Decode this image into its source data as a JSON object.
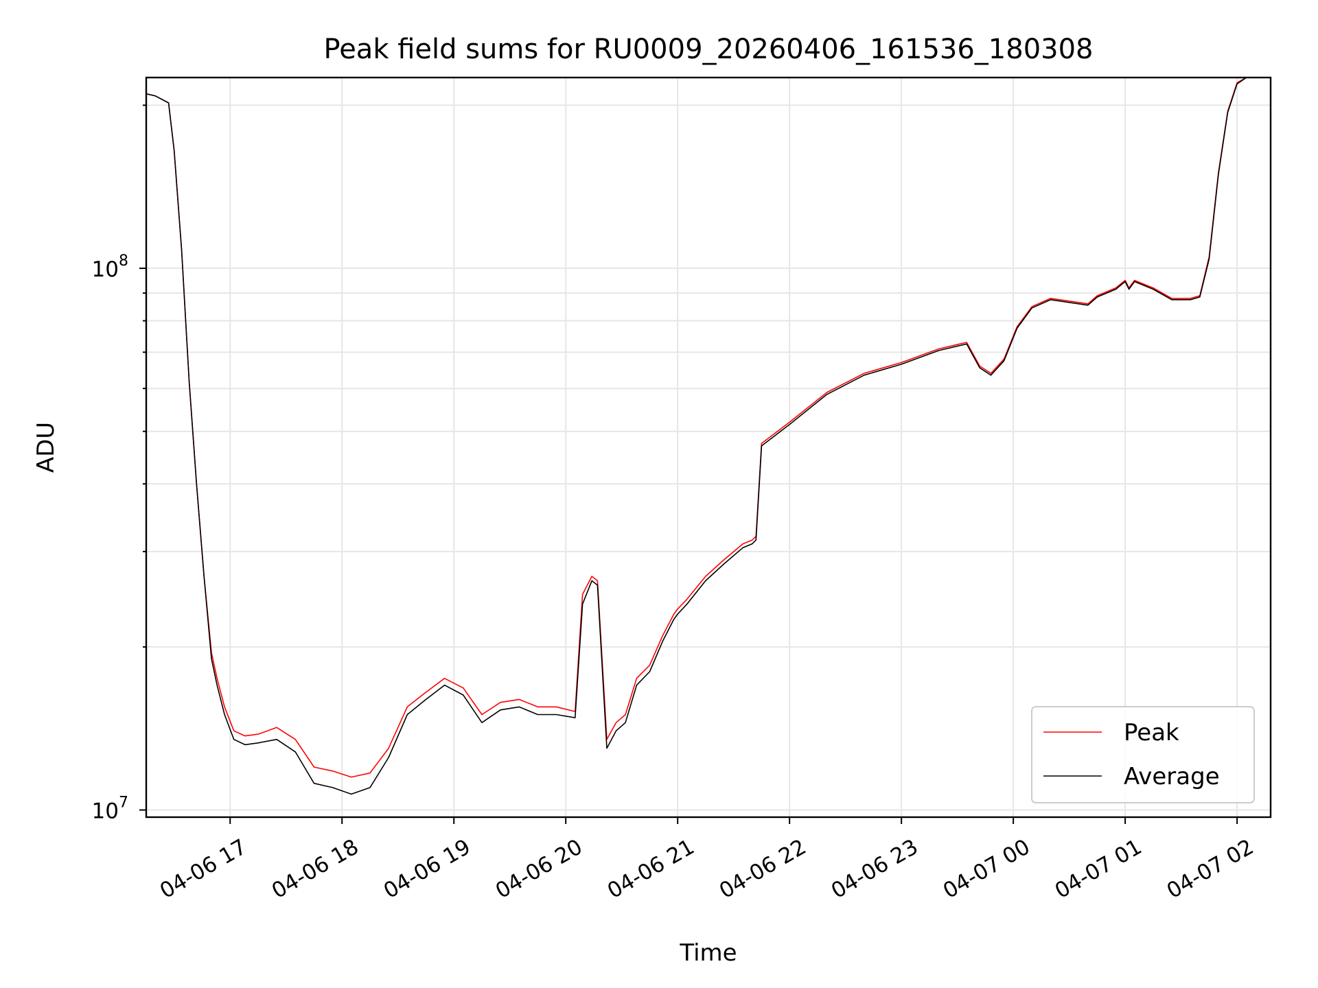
{
  "chart_data": {
    "type": "line",
    "title": "Peak field sums for RU0009_20260406_161536_180308",
    "xlabel": "Time",
    "ylabel": "ADU",
    "x_axis": {
      "type": "time",
      "range": [
        "2026-04-06 16:15",
        "2026-04-07 02:18"
      ],
      "tick_labels": [
        "04-06 17",
        "04-06 18",
        "04-06 19",
        "04-06 20",
        "04-06 21",
        "04-06 22",
        "04-06 23",
        "04-07 00",
        "04-07 01",
        "04-07 02"
      ]
    },
    "y_axis": {
      "scale": "log",
      "range": [
        9700000,
        225000000
      ],
      "major_ticks": [
        10000000,
        100000000
      ],
      "tick_labels": [
        {
          "base": "10",
          "exp": "7"
        },
        {
          "base": "10",
          "exp": "8"
        }
      ]
    },
    "grid": true,
    "legend": {
      "placement": "lower-right"
    },
    "series": [
      {
        "name": "Peak",
        "color": "#ff0000",
        "x": [
          "2026-04-06 16:15",
          "2026-04-06 16:20",
          "2026-04-06 16:27",
          "2026-04-06 16:30",
          "2026-04-06 16:34",
          "2026-04-06 16:38",
          "2026-04-06 16:42",
          "2026-04-06 16:46",
          "2026-04-06 16:50",
          "2026-04-06 16:53",
          "2026-04-06 16:57",
          "2026-04-06 17:02",
          "2026-04-06 17:08",
          "2026-04-06 17:15",
          "2026-04-06 17:25",
          "2026-04-06 17:35",
          "2026-04-06 17:45",
          "2026-04-06 17:55",
          "2026-04-06 18:05",
          "2026-04-06 18:15",
          "2026-04-06 18:25",
          "2026-04-06 18:35",
          "2026-04-06 18:45",
          "2026-04-06 18:55",
          "2026-04-06 19:05",
          "2026-04-06 19:15",
          "2026-04-06 19:25",
          "2026-04-06 19:35",
          "2026-04-06 19:45",
          "2026-04-06 19:55",
          "2026-04-06 20:05",
          "2026-04-06 20:09",
          "2026-04-06 20:14",
          "2026-04-06 20:17",
          "2026-04-06 20:22",
          "2026-04-06 20:27",
          "2026-04-06 20:32",
          "2026-04-06 20:38",
          "2026-04-06 20:45",
          "2026-04-06 20:52",
          "2026-04-06 20:58",
          "2026-04-06 21:00",
          "2026-04-06 21:05",
          "2026-04-06 21:15",
          "2026-04-06 21:25",
          "2026-04-06 21:35",
          "2026-04-06 21:40",
          "2026-04-06 21:42",
          "2026-04-06 21:45",
          "2026-04-06 22:00",
          "2026-04-06 22:20",
          "2026-04-06 22:40",
          "2026-04-06 23:00",
          "2026-04-06 23:20",
          "2026-04-06 23:35",
          "2026-04-06 23:42",
          "2026-04-06 23:48",
          "2026-04-06 23:55",
          "2026-04-07 00:02",
          "2026-04-07 00:10",
          "2026-04-07 00:20",
          "2026-04-07 00:30",
          "2026-04-07 00:40",
          "2026-04-07 00:45",
          "2026-04-07 00:55",
          "2026-04-07 01:00",
          "2026-04-07 01:02",
          "2026-04-07 01:05",
          "2026-04-07 01:15",
          "2026-04-07 01:25",
          "2026-04-07 01:35",
          "2026-04-07 01:40",
          "2026-04-07 01:45",
          "2026-04-07 01:50",
          "2026-04-07 01:55",
          "2026-04-07 02:00",
          "2026-04-07 02:05",
          "2026-04-07 02:10"
        ],
        "y": [
          210000000,
          208000000,
          202000000,
          165000000,
          108000000,
          62000000,
          40000000,
          27000000,
          19500000,
          17500000,
          15500000,
          14000000,
          13700000,
          13800000,
          14200000,
          13500000,
          12000000,
          11800000,
          11500000,
          11700000,
          13000000,
          15500000,
          16500000,
          17500000,
          16800000,
          15000000,
          15800000,
          16000000,
          15500000,
          15500000,
          15200000,
          25000000,
          27000000,
          26500000,
          13500000,
          14500000,
          15000000,
          17500000,
          18500000,
          21000000,
          23000000,
          23500000,
          24500000,
          27000000,
          29000000,
          31000000,
          31500000,
          32000000,
          47500000,
          52000000,
          59000000,
          64000000,
          67000000,
          71000000,
          73000000,
          66000000,
          64000000,
          68000000,
          78000000,
          85000000,
          88000000,
          87000000,
          86000000,
          89000000,
          92000000,
          95000000,
          92000000,
          95000000,
          92000000,
          88000000,
          88000000,
          89000000,
          105000000,
          150000000,
          195000000,
          220000000,
          225000000,
          225000000
        ]
      },
      {
        "name": "Average",
        "color": "#000000",
        "x": [
          "2026-04-06 16:15",
          "2026-04-06 16:20",
          "2026-04-06 16:27",
          "2026-04-06 16:30",
          "2026-04-06 16:34",
          "2026-04-06 16:38",
          "2026-04-06 16:42",
          "2026-04-06 16:46",
          "2026-04-06 16:50",
          "2026-04-06 16:53",
          "2026-04-06 16:57",
          "2026-04-06 17:02",
          "2026-04-06 17:08",
          "2026-04-06 17:15",
          "2026-04-06 17:25",
          "2026-04-06 17:35",
          "2026-04-06 17:45",
          "2026-04-06 17:55",
          "2026-04-06 18:05",
          "2026-04-06 18:15",
          "2026-04-06 18:25",
          "2026-04-06 18:35",
          "2026-04-06 18:45",
          "2026-04-06 18:55",
          "2026-04-06 19:05",
          "2026-04-06 19:15",
          "2026-04-06 19:25",
          "2026-04-06 19:35",
          "2026-04-06 19:45",
          "2026-04-06 19:55",
          "2026-04-06 20:05",
          "2026-04-06 20:09",
          "2026-04-06 20:14",
          "2026-04-06 20:17",
          "2026-04-06 20:22",
          "2026-04-06 20:27",
          "2026-04-06 20:32",
          "2026-04-06 20:38",
          "2026-04-06 20:45",
          "2026-04-06 20:52",
          "2026-04-06 20:58",
          "2026-04-06 21:00",
          "2026-04-06 21:05",
          "2026-04-06 21:15",
          "2026-04-06 21:25",
          "2026-04-06 21:35",
          "2026-04-06 21:40",
          "2026-04-06 21:42",
          "2026-04-06 21:45",
          "2026-04-06 22:00",
          "2026-04-06 22:20",
          "2026-04-06 22:40",
          "2026-04-06 23:00",
          "2026-04-06 23:20",
          "2026-04-06 23:35",
          "2026-04-06 23:42",
          "2026-04-06 23:48",
          "2026-04-06 23:55",
          "2026-04-07 00:02",
          "2026-04-07 00:10",
          "2026-04-07 00:20",
          "2026-04-07 00:30",
          "2026-04-07 00:40",
          "2026-04-07 00:45",
          "2026-04-07 00:55",
          "2026-04-07 01:00",
          "2026-04-07 01:02",
          "2026-04-07 01:05",
          "2026-04-07 01:15",
          "2026-04-07 01:25",
          "2026-04-07 01:35",
          "2026-04-07 01:40",
          "2026-04-07 01:45",
          "2026-04-07 01:50",
          "2026-04-07 01:55",
          "2026-04-07 02:00",
          "2026-04-07 02:05",
          "2026-04-07 02:10"
        ],
        "y": [
          210000000,
          208000000,
          202000000,
          165000000,
          108000000,
          62000000,
          40000000,
          27000000,
          19000000,
          17000000,
          15000000,
          13500000,
          13200000,
          13300000,
          13500000,
          12800000,
          11200000,
          11000000,
          10700000,
          11000000,
          12500000,
          15000000,
          16000000,
          17000000,
          16300000,
          14500000,
          15300000,
          15500000,
          15000000,
          15000000,
          14800000,
          24000000,
          26500000,
          26000000,
          13000000,
          14000000,
          14500000,
          17000000,
          18000000,
          20500000,
          22500000,
          23000000,
          24000000,
          26500000,
          28500000,
          30500000,
          31000000,
          31500000,
          47000000,
          51500000,
          58500000,
          63500000,
          66500000,
          70500000,
          72500000,
          65500000,
          63500000,
          67500000,
          77500000,
          84500000,
          87500000,
          86500000,
          85500000,
          88500000,
          91500000,
          94500000,
          91500000,
          94500000,
          91500000,
          87500000,
          87500000,
          88500000,
          104000000,
          149000000,
          194000000,
          219000000,
          225000000,
          225000000
        ]
      }
    ]
  }
}
